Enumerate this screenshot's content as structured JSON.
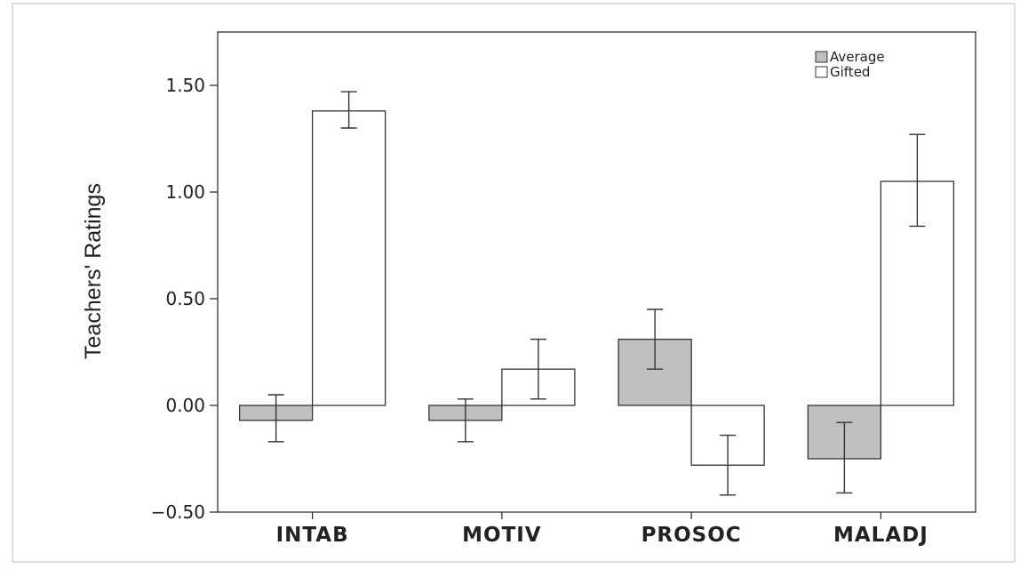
{
  "chart_data": {
    "type": "bar",
    "title": "",
    "xlabel": "",
    "ylabel": "Teachers' Ratings",
    "categories": [
      "INTAB",
      "MOTIV",
      "PROSOC",
      "MALADJ"
    ],
    "ylim": [
      -0.5,
      1.75
    ],
    "yticks": [
      -0.5,
      0.0,
      0.5,
      1.0,
      1.5
    ],
    "ytick_labels": [
      "−0.50",
      "0.00",
      "0.50",
      "1.00",
      "1.50"
    ],
    "grid": false,
    "legend_position": "top-right",
    "error_bars": true,
    "series": [
      {
        "name": "Average",
        "color": "#c0c0c0",
        "values": [
          -0.07,
          -0.07,
          0.31,
          -0.25
        ],
        "error_low": [
          -0.17,
          -0.17,
          0.17,
          -0.41
        ],
        "error_high": [
          0.05,
          0.03,
          0.45,
          -0.08
        ]
      },
      {
        "name": "Gifted",
        "color": "#ffffff",
        "values": [
          1.38,
          0.17,
          -0.28,
          1.05
        ],
        "error_low": [
          1.3,
          0.03,
          -0.42,
          0.84
        ],
        "error_high": [
          1.47,
          0.31,
          -0.14,
          1.27
        ]
      }
    ]
  }
}
